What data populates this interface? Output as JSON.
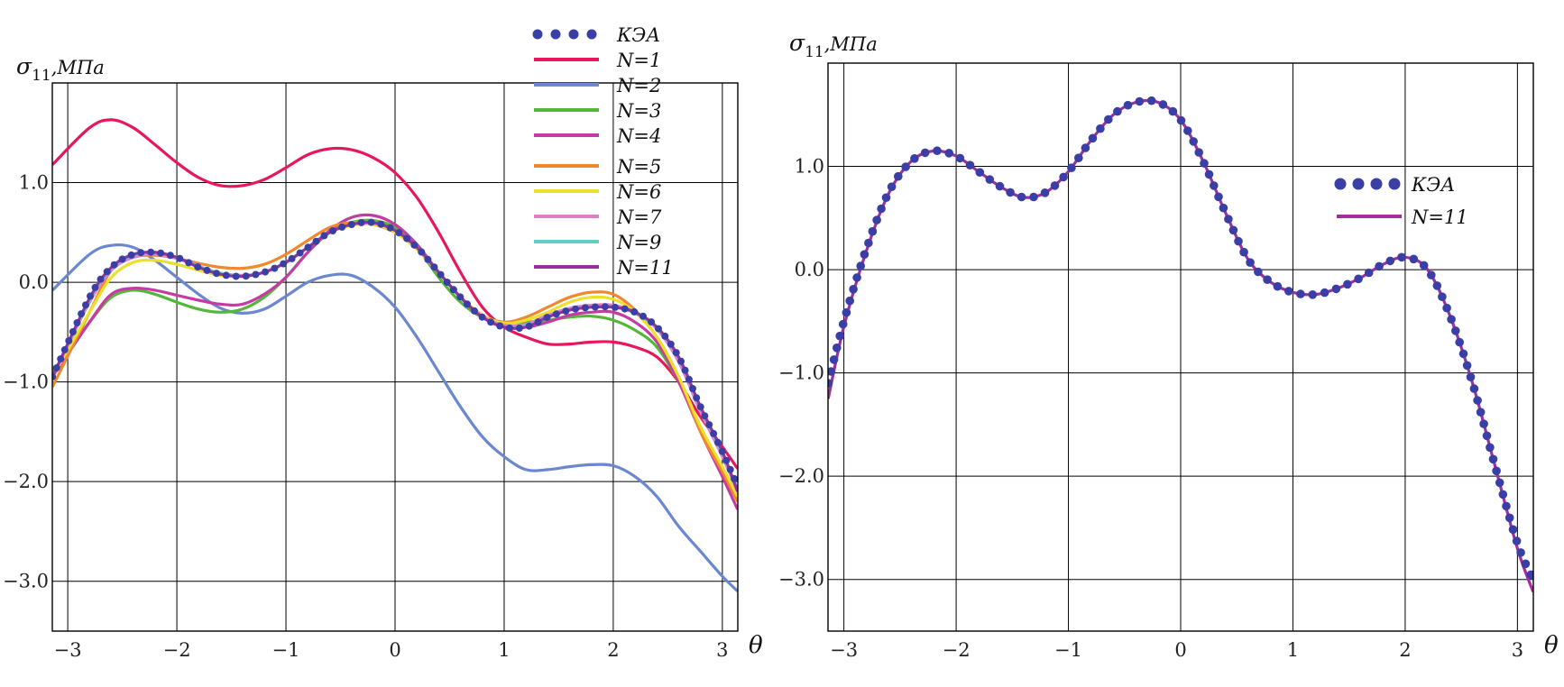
{
  "chart_data": [
    {
      "type": "line",
      "title": "",
      "ylabel": "σ11,МПа",
      "ylabel_symbol": "σ",
      "ylabel_subscript": "11",
      "ylabel_unit": ",МПа",
      "xlabel": "θ",
      "xlim": [
        -3.1416,
        3.1416
      ],
      "ylim": [
        -3.5,
        2.0
      ],
      "xticks": [
        -3,
        -2,
        -1,
        0,
        1,
        2,
        3
      ],
      "xtick_labels": [
        "−3",
        "−2",
        "−1",
        "0",
        "1",
        "2",
        "3"
      ],
      "yticks": [
        1.0,
        0.0,
        -1.0,
        -2.0,
        -3.0
      ],
      "ytick_labels": [
        "1.0",
        "0.0",
        "−1.0",
        "−2.0",
        "−3.0"
      ],
      "grid": true,
      "legend_position": "top-right",
      "x": [
        -3.14,
        -2.8,
        -2.6,
        -2.4,
        -2.2,
        -2.0,
        -1.8,
        -1.6,
        -1.4,
        -1.2,
        -1.0,
        -0.8,
        -0.6,
        -0.4,
        -0.2,
        0.0,
        0.2,
        0.4,
        0.6,
        0.8,
        1.0,
        1.2,
        1.4,
        1.6,
        1.8,
        2.0,
        2.2,
        2.4,
        2.6,
        2.8,
        3.0,
        3.14
      ],
      "series": [
        {
          "name": "КЭА",
          "style": "dots",
          "color": "#3a3fa6",
          "values": [
            -0.95,
            -0.15,
            0.15,
            0.28,
            0.3,
            0.25,
            0.15,
            0.08,
            0.06,
            0.1,
            0.2,
            0.35,
            0.5,
            0.58,
            0.6,
            0.52,
            0.35,
            0.1,
            -0.15,
            -0.35,
            -0.45,
            -0.45,
            -0.35,
            -0.28,
            -0.25,
            -0.25,
            -0.3,
            -0.45,
            -0.75,
            -1.25,
            -1.7,
            -2.05
          ]
        },
        {
          "name": "N=1",
          "style": "line",
          "color": "#e8175d",
          "values": [
            1.18,
            1.55,
            1.63,
            1.55,
            1.38,
            1.2,
            1.05,
            0.97,
            0.97,
            1.03,
            1.15,
            1.28,
            1.34,
            1.33,
            1.25,
            1.1,
            0.85,
            0.5,
            0.1,
            -0.25,
            -0.45,
            -0.55,
            -0.62,
            -0.62,
            -0.6,
            -0.6,
            -0.65,
            -0.75,
            -1.0,
            -1.35,
            -1.65,
            -1.87
          ]
        },
        {
          "name": "N=2",
          "style": "line",
          "color": "#6a87cf",
          "values": [
            -0.08,
            0.28,
            0.37,
            0.35,
            0.22,
            0.05,
            -0.12,
            -0.26,
            -0.31,
            -0.27,
            -0.14,
            0.0,
            0.07,
            0.07,
            -0.05,
            -0.25,
            -0.55,
            -0.9,
            -1.25,
            -1.55,
            -1.75,
            -1.88,
            -1.88,
            -1.85,
            -1.83,
            -1.84,
            -1.95,
            -2.15,
            -2.45,
            -2.7,
            -2.95,
            -3.1
          ]
        },
        {
          "name": "N=3",
          "style": "line",
          "color": "#53b83a",
          "values": [
            -0.9,
            -0.4,
            -0.15,
            -0.08,
            -0.12,
            -0.2,
            -0.27,
            -0.3,
            -0.27,
            -0.15,
            0.05,
            0.3,
            0.5,
            0.6,
            0.62,
            0.55,
            0.35,
            0.05,
            -0.2,
            -0.35,
            -0.4,
            -0.4,
            -0.38,
            -0.35,
            -0.34,
            -0.38,
            -0.48,
            -0.65,
            -1.0,
            -1.45,
            -1.9,
            -2.2
          ]
        },
        {
          "name": "N=4",
          "style": "line",
          "color": "#c63aa3",
          "values": [
            -0.95,
            -0.4,
            -0.12,
            -0.06,
            -0.08,
            -0.13,
            -0.18,
            -0.22,
            -0.22,
            -0.12,
            0.05,
            0.3,
            0.52,
            0.65,
            0.67,
            0.58,
            0.38,
            0.1,
            -0.15,
            -0.33,
            -0.43,
            -0.45,
            -0.4,
            -0.33,
            -0.3,
            -0.3,
            -0.4,
            -0.6,
            -1.0,
            -1.5,
            -1.95,
            -2.28
          ]
        },
        {
          "name": "N=5",
          "style": "line",
          "color": "#f0892e",
          "values": [
            -1.05,
            -0.3,
            0.12,
            0.25,
            0.27,
            0.24,
            0.19,
            0.15,
            0.14,
            0.18,
            0.28,
            0.42,
            0.55,
            0.6,
            0.58,
            0.5,
            0.35,
            0.1,
            -0.15,
            -0.33,
            -0.4,
            -0.35,
            -0.25,
            -0.15,
            -0.1,
            -0.12,
            -0.28,
            -0.55,
            -0.95,
            -1.5,
            -1.9,
            -2.2
          ]
        },
        {
          "name": "N=6",
          "style": "line",
          "color": "#ebe02a",
          "values": [
            -0.95,
            -0.3,
            0.05,
            0.2,
            0.22,
            0.18,
            0.12,
            0.07,
            0.06,
            0.1,
            0.2,
            0.35,
            0.5,
            0.57,
            0.58,
            0.5,
            0.33,
            0.1,
            -0.15,
            -0.33,
            -0.41,
            -0.38,
            -0.3,
            -0.2,
            -0.15,
            -0.17,
            -0.3,
            -0.55,
            -0.95,
            -1.45,
            -1.85,
            -2.15
          ]
        },
        {
          "name": "N=7",
          "style": "line",
          "color": "#df7fc9",
          "values": [
            -0.95,
            -0.2,
            0.12,
            0.25,
            0.28,
            0.24,
            0.16,
            0.09,
            0.07,
            0.1,
            0.2,
            0.35,
            0.5,
            0.58,
            0.59,
            0.52,
            0.35,
            0.1,
            -0.15,
            -0.34,
            -0.43,
            -0.42,
            -0.33,
            -0.26,
            -0.23,
            -0.23,
            -0.3,
            -0.47,
            -0.8,
            -1.3,
            -1.75,
            -2.1
          ]
        },
        {
          "name": "N=9",
          "style": "line",
          "color": "#5fcfc3",
          "values": [
            -0.95,
            -0.18,
            0.14,
            0.27,
            0.3,
            0.25,
            0.16,
            0.09,
            0.06,
            0.1,
            0.2,
            0.35,
            0.5,
            0.58,
            0.6,
            0.52,
            0.35,
            0.1,
            -0.15,
            -0.35,
            -0.45,
            -0.44,
            -0.35,
            -0.28,
            -0.25,
            -0.25,
            -0.31,
            -0.46,
            -0.76,
            -1.26,
            -1.72,
            -2.08
          ]
        },
        {
          "name": "N=11",
          "style": "line",
          "color": "#9a2f9e",
          "values": [
            -0.95,
            -0.16,
            0.15,
            0.28,
            0.3,
            0.25,
            0.15,
            0.08,
            0.06,
            0.1,
            0.2,
            0.35,
            0.5,
            0.58,
            0.6,
            0.52,
            0.35,
            0.1,
            -0.15,
            -0.35,
            -0.45,
            -0.45,
            -0.35,
            -0.28,
            -0.25,
            -0.25,
            -0.3,
            -0.45,
            -0.75,
            -1.25,
            -1.7,
            -2.1
          ]
        }
      ]
    },
    {
      "type": "line",
      "title": "",
      "ylabel": "σ11,МПа",
      "ylabel_symbol": "σ",
      "ylabel_subscript": "11",
      "ylabel_unit": ",МПа",
      "xlabel": "θ",
      "xlim": [
        -3.1416,
        3.1416
      ],
      "ylim": [
        -3.5,
        2.0
      ],
      "xticks": [
        -3,
        -2,
        -1,
        0,
        1,
        2,
        3
      ],
      "xtick_labels": [
        "−3",
        "−2",
        "−1",
        "0",
        "1",
        "2",
        "3"
      ],
      "yticks": [
        1.0,
        0.0,
        -1.0,
        -2.0,
        -3.0
      ],
      "ytick_labels": [
        "1.0",
        "0.0",
        "−1.0",
        "−2.0",
        "−3.0"
      ],
      "grid": true,
      "legend_position": "right",
      "x": [
        -3.14,
        -3.0,
        -2.8,
        -2.6,
        -2.4,
        -2.2,
        -2.0,
        -1.8,
        -1.6,
        -1.4,
        -1.2,
        -1.0,
        -0.8,
        -0.6,
        -0.4,
        -0.2,
        0.0,
        0.2,
        0.4,
        0.6,
        0.8,
        1.0,
        1.2,
        1.4,
        1.6,
        1.8,
        2.0,
        2.2,
        2.4,
        2.6,
        2.8,
        3.0,
        3.14
      ],
      "series": [
        {
          "name": "КЭА",
          "style": "dots",
          "color": "#3a3fa6",
          "values": [
            -1.1,
            -0.5,
            0.2,
            0.75,
            1.05,
            1.15,
            1.1,
            0.95,
            0.8,
            0.7,
            0.75,
            0.95,
            1.25,
            1.5,
            1.62,
            1.62,
            1.45,
            1.05,
            0.55,
            0.1,
            -0.12,
            -0.22,
            -0.24,
            -0.18,
            -0.08,
            0.05,
            0.12,
            0.0,
            -0.45,
            -1.1,
            -1.9,
            -2.65,
            -3.0
          ]
        },
        {
          "name": "N=11",
          "style": "line",
          "color": "#a32d9c",
          "values": [
            -1.25,
            -0.55,
            0.18,
            0.74,
            1.05,
            1.15,
            1.1,
            0.95,
            0.8,
            0.7,
            0.75,
            0.95,
            1.25,
            1.5,
            1.62,
            1.62,
            1.45,
            1.05,
            0.55,
            0.1,
            -0.12,
            -0.22,
            -0.24,
            -0.18,
            -0.08,
            0.05,
            0.12,
            0.0,
            -0.45,
            -1.1,
            -1.9,
            -2.7,
            -3.12
          ]
        }
      ]
    }
  ]
}
